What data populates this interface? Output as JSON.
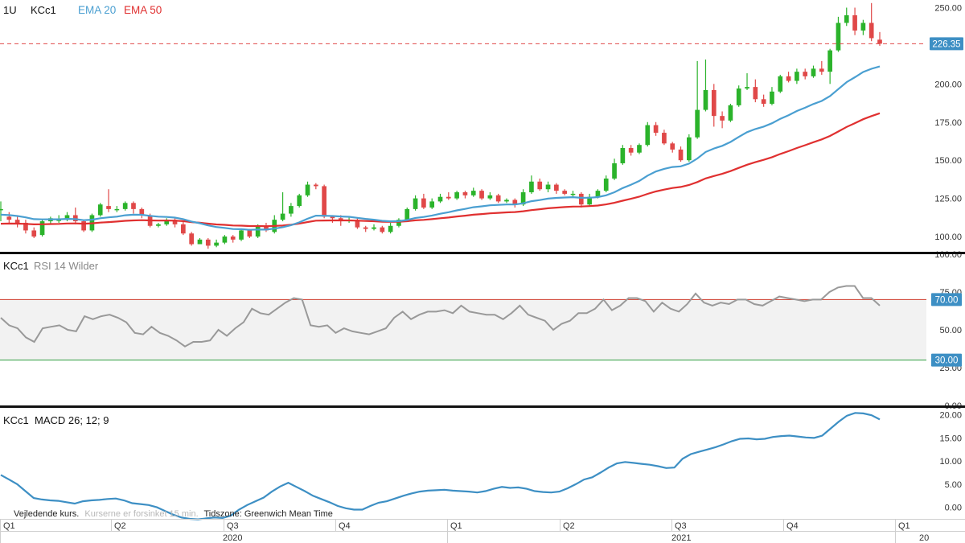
{
  "toolbar": {
    "interval": "1U",
    "symbol": "KCc1",
    "ema_fast_label": "EMA 20",
    "ema_slow_label": "EMA 50",
    "colors": {
      "ema_fast": "#4a9fd1",
      "ema_slow": "#e03030",
      "up": "#2bb32b",
      "down": "#e04848",
      "rsi": "#999999",
      "macd": "#3d8fc4"
    }
  },
  "chart_data": [
    {
      "type": "candlestick",
      "title": "KCc1",
      "indicators": [
        "EMA 20",
        "EMA 50"
      ],
      "ylim": [
        90,
        255
      ],
      "y_ticks": [
        "100.00",
        "125.00",
        "150.00",
        "175.00",
        "200.00",
        "225.00",
        "250.00"
      ],
      "last_price": 226.35,
      "last_price_label": "226.35",
      "candles": [
        [
          118,
          118,
          123,
          110
        ],
        [
          113,
          111,
          116,
          108
        ],
        [
          111,
          108,
          113,
          106
        ],
        [
          109,
          104,
          111,
          102
        ],
        [
          104,
          100,
          106,
          99
        ],
        [
          101,
          110,
          111,
          100
        ],
        [
          110,
          112,
          113,
          108
        ],
        [
          111,
          111,
          114,
          109
        ],
        [
          111,
          114,
          116,
          110
        ],
        [
          114,
          110,
          119,
          108
        ],
        [
          110,
          104,
          111,
          103
        ],
        [
          104,
          114,
          115,
          103
        ],
        [
          114,
          121,
          122,
          113
        ],
        [
          120,
          118,
          131,
          116
        ],
        [
          118,
          118,
          120,
          116
        ],
        [
          118,
          122,
          123,
          117
        ],
        [
          122,
          118,
          123,
          115
        ],
        [
          118,
          114,
          119,
          112
        ],
        [
          114,
          107,
          115,
          106
        ],
        [
          107,
          108,
          109,
          106
        ],
        [
          108,
          111,
          112,
          107
        ],
        [
          111,
          108,
          112,
          106
        ],
        [
          108,
          102,
          110,
          101
        ],
        [
          102,
          95,
          103,
          94
        ],
        [
          95,
          98,
          99,
          95
        ],
        [
          98,
          94,
          99,
          92
        ],
        [
          94,
          96,
          98,
          93
        ],
        [
          96,
          100,
          101,
          95
        ],
        [
          100,
          98,
          101,
          96
        ],
        [
          98,
          104,
          105,
          97
        ],
        [
          104,
          100,
          105,
          99
        ],
        [
          100,
          107,
          108,
          99
        ],
        [
          107,
          104,
          109,
          103
        ],
        [
          103,
          111,
          114,
          102
        ],
        [
          111,
          115,
          129,
          110
        ],
        [
          115,
          120,
          122,
          113
        ],
        [
          120,
          127,
          128,
          119
        ],
        [
          127,
          134,
          136,
          126
        ],
        [
          134,
          133,
          135,
          131
        ],
        [
          133,
          113,
          134,
          112
        ],
        [
          113,
          112,
          114,
          109
        ],
        [
          112,
          110,
          114,
          107
        ],
        [
          110,
          111,
          113,
          109
        ],
        [
          111,
          106,
          112,
          105
        ],
        [
          106,
          105,
          107,
          103
        ],
        [
          105,
          106,
          108,
          104
        ],
        [
          106,
          103,
          107,
          102
        ],
        [
          103,
          107,
          109,
          102
        ],
        [
          107,
          111,
          112,
          106
        ],
        [
          111,
          118,
          119,
          110
        ],
        [
          118,
          125,
          127,
          117
        ],
        [
          125,
          119,
          128,
          118
        ],
        [
          119,
          123,
          125,
          118
        ],
        [
          123,
          126,
          128,
          122
        ],
        [
          126,
          125,
          129,
          124
        ],
        [
          125,
          129,
          130,
          124
        ],
        [
          129,
          127,
          130,
          125
        ],
        [
          127,
          130,
          132,
          126
        ],
        [
          130,
          125,
          131,
          124
        ],
        [
          125,
          127,
          129,
          124
        ],
        [
          127,
          123,
          128,
          122
        ],
        [
          123,
          124,
          125,
          122
        ],
        [
          124,
          121,
          125,
          119
        ],
        [
          121,
          129,
          131,
          120
        ],
        [
          129,
          136,
          140,
          128
        ],
        [
          136,
          131,
          138,
          130
        ],
        [
          131,
          134,
          136,
          129
        ],
        [
          134,
          130,
          135,
          128
        ],
        [
          130,
          128,
          131,
          127
        ],
        [
          128,
          128,
          130,
          126
        ],
        [
          128,
          121,
          129,
          119
        ],
        [
          121,
          126,
          128,
          120
        ],
        [
          126,
          130,
          131,
          125
        ],
        [
          130,
          138,
          140,
          129
        ],
        [
          138,
          148,
          151,
          137
        ],
        [
          148,
          158,
          160,
          147
        ],
        [
          158,
          155,
          160,
          153
        ],
        [
          155,
          160,
          161,
          154
        ],
        [
          160,
          173,
          175,
          159
        ],
        [
          173,
          168,
          175,
          166
        ],
        [
          168,
          161,
          170,
          160
        ],
        [
          161,
          157,
          162,
          155
        ],
        [
          157,
          150,
          159,
          149
        ],
        [
          150,
          165,
          167,
          149
        ],
        [
          165,
          183,
          215,
          164
        ],
        [
          183,
          196,
          216,
          182
        ],
        [
          196,
          179,
          200,
          172
        ],
        [
          179,
          176,
          182,
          171
        ],
        [
          176,
          186,
          187,
          175
        ],
        [
          186,
          197,
          199,
          185
        ],
        [
          197,
          198,
          207,
          196
        ],
        [
          198,
          190,
          203,
          188
        ],
        [
          190,
          187,
          193,
          185
        ],
        [
          187,
          195,
          198,
          186
        ],
        [
          195,
          205,
          206,
          194
        ],
        [
          205,
          202,
          208,
          201
        ],
        [
          202,
          208,
          210,
          200
        ],
        [
          208,
          205,
          210,
          203
        ],
        [
          205,
          210,
          212,
          204
        ],
        [
          210,
          208,
          215,
          206
        ],
        [
          208,
          222,
          223,
          200
        ],
        [
          222,
          240,
          244,
          221
        ],
        [
          240,
          245,
          250,
          238
        ],
        [
          245,
          235,
          250,
          232
        ],
        [
          235,
          240,
          242,
          232
        ],
        [
          240,
          230,
          253,
          228
        ],
        [
          229,
          226.35,
          234,
          225
        ]
      ]
    },
    {
      "type": "line",
      "title": "KCc1",
      "indicator_label": "RSI 14 Wilder",
      "ylim": [
        0,
        100
      ],
      "y_ticks": [
        "0.00",
        "25.00",
        "50.00",
        "75.00",
        "100.00"
      ],
      "levels": [
        {
          "value": 70,
          "label": "70.00",
          "color": "#d03a2a"
        },
        {
          "value": 30,
          "label": "30.00",
          "color": "#2f9e3f"
        }
      ],
      "values": [
        58,
        53,
        51,
        45,
        42,
        51,
        52,
        53,
        50,
        49,
        59,
        57,
        59,
        60,
        58,
        55,
        48,
        47,
        52,
        48,
        46,
        43,
        39,
        42,
        42,
        43,
        50,
        46,
        51,
        55,
        64,
        61,
        60,
        64,
        68,
        71,
        70,
        53,
        52,
        53,
        48,
        51,
        49,
        48,
        47,
        49,
        51,
        58,
        62,
        57,
        60,
        62,
        62,
        63,
        61,
        66,
        62,
        61,
        60,
        60,
        57,
        61,
        66,
        60,
        58,
        56,
        50,
        54,
        56,
        61,
        61,
        64,
        70,
        63,
        66,
        71,
        71,
        69,
        62,
        68,
        64,
        62,
        67,
        74,
        68,
        66,
        68,
        67,
        70,
        70,
        67,
        66,
        69,
        72,
        71,
        70,
        69,
        70,
        70,
        75,
        78,
        79,
        79,
        71,
        71,
        66
      ]
    },
    {
      "type": "line",
      "title": "KCc1",
      "indicator_label": "MACD 26; 12; 9",
      "ylim": [
        -2.5,
        21.5
      ],
      "y_ticks": [
        "0.00",
        "5.00",
        "10.00",
        "15.00",
        "20.00"
      ],
      "values": [
        7.0,
        6.0,
        5.0,
        3.5,
        2.0,
        1.7,
        1.5,
        1.4,
        1.1,
        0.8,
        1.3,
        1.5,
        1.6,
        1.8,
        1.9,
        1.5,
        0.9,
        0.7,
        0.5,
        0.0,
        -0.8,
        -1.6,
        -2.2,
        -2.5,
        -2.6,
        -2.4,
        -2.2,
        -2.3,
        -1.8,
        -0.5,
        0.5,
        1.3,
        2.1,
        3.4,
        4.5,
        5.3,
        4.4,
        3.5,
        2.5,
        1.8,
        1.1,
        0.3,
        -0.2,
        -0.5,
        -0.5,
        0.3,
        1.0,
        1.3,
        1.9,
        2.5,
        3.0,
        3.4,
        3.6,
        3.7,
        3.8,
        3.6,
        3.5,
        3.4,
        3.2,
        3.5,
        4.0,
        4.4,
        4.2,
        4.3,
        4.0,
        3.5,
        3.3,
        3.2,
        3.4,
        4.1,
        5.0,
        6.0,
        6.5,
        7.5,
        8.6,
        9.5,
        9.8,
        9.6,
        9.4,
        9.2,
        8.9,
        8.5,
        8.6,
        10.5,
        11.5,
        12.0,
        12.5,
        13.0,
        13.6,
        14.3,
        14.8,
        14.9,
        14.7,
        14.8,
        15.2,
        15.4,
        15.5,
        15.3,
        15.1,
        15.0,
        15.5,
        17.0,
        18.5,
        19.8,
        20.4,
        20.3,
        19.9,
        19.0
      ]
    }
  ],
  "time_axis": {
    "quarter_labels": [
      "Q1",
      "Q2",
      "Q3",
      "Q4",
      "Q1",
      "Q2",
      "Q3",
      "Q4",
      "Q1"
    ],
    "year_labels": [
      "2020",
      "2021",
      "20"
    ]
  },
  "footer": {
    "note_prefix": "Vejledende kurs.",
    "note_faded": "Kurserne er forsinket 15 min.",
    "timezone": "Tidszone: Greenwich Mean Time"
  }
}
